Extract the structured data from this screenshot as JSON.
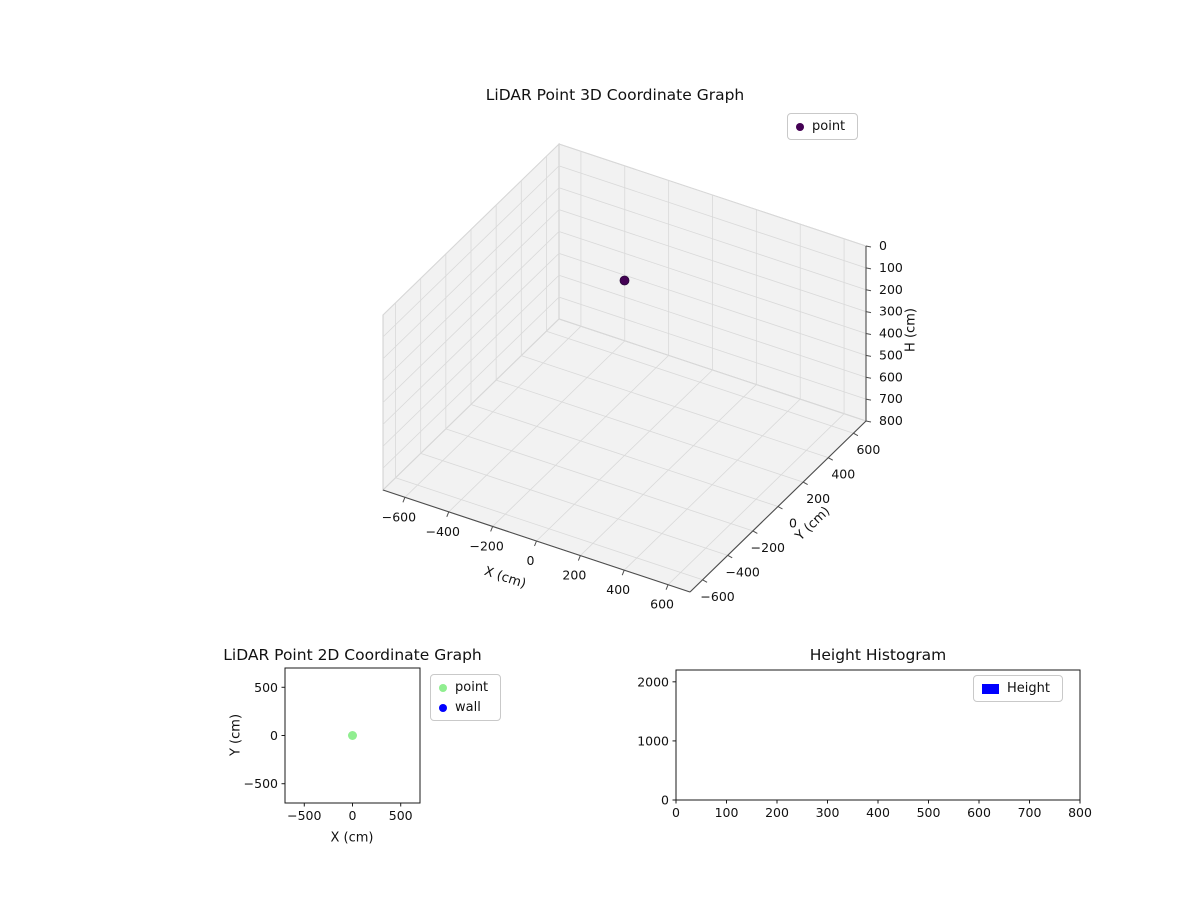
{
  "figure": {
    "background": "#ffffff"
  },
  "chart_data": [
    {
      "id": "lidar-3d",
      "type": "scatter3d",
      "title": "LiDAR Point 3D Coordinate Graph",
      "xlabel": "X (cm)",
      "ylabel": "Y (cm)",
      "hlabel": "H (cm)",
      "xlim": [
        -700,
        700
      ],
      "ylim": [
        -700,
        700
      ],
      "hlim": [
        0,
        800
      ],
      "h_axis_display": "inverted (0 at top, 800 at bottom)",
      "xticks": [
        -600,
        -400,
        -200,
        0,
        200,
        400,
        600
      ],
      "yticks": [
        -600,
        -400,
        -200,
        0,
        200,
        400,
        600
      ],
      "hticks": [
        0,
        100,
        200,
        300,
        400,
        500,
        600,
        700,
        800
      ],
      "grid": true,
      "legend": [
        {
          "label": "point",
          "color": "#440154",
          "marker": "circle"
        }
      ],
      "points": [
        {
          "x": 0,
          "y": 0,
          "h": 0,
          "color": "#440154"
        }
      ]
    },
    {
      "id": "lidar-2d",
      "type": "scatter",
      "title": "LiDAR Point 2D Coordinate Graph",
      "xlabel": "X (cm)",
      "ylabel": "Y (cm)",
      "xlim": [
        -700,
        700
      ],
      "ylim": [
        -700,
        700
      ],
      "xticks": [
        -500,
        0,
        500
      ],
      "yticks": [
        -500,
        0,
        500
      ],
      "grid": false,
      "legend": [
        {
          "label": "point",
          "color": "#90ee90",
          "marker": "circle"
        },
        {
          "label": "wall",
          "color": "#0000ff",
          "marker": "circle"
        }
      ],
      "points": [
        {
          "x": 0,
          "y": 0,
          "color": "#90ee90"
        }
      ]
    },
    {
      "id": "height-histogram",
      "type": "histogram",
      "title": "Height Histogram",
      "xlabel": "",
      "ylabel": "",
      "xlim": [
        0,
        800
      ],
      "ylim": [
        0,
        2200
      ],
      "xticks": [
        0,
        100,
        200,
        300,
        400,
        500,
        600,
        700,
        800
      ],
      "yticks": [
        0,
        1000,
        2000
      ],
      "grid": false,
      "legend": [
        {
          "label": "Height",
          "color": "#0000ff",
          "marker": "rect"
        }
      ],
      "bars": []
    }
  ],
  "style": {
    "pane_color": "#f2f2f2",
    "grid_color": "#d9d9d9",
    "pane_edge_color": "#cfcfcf",
    "axis3d_color": "#4d4d4d",
    "spine_color": "#1a1a1a",
    "text_color": "#111111"
  }
}
